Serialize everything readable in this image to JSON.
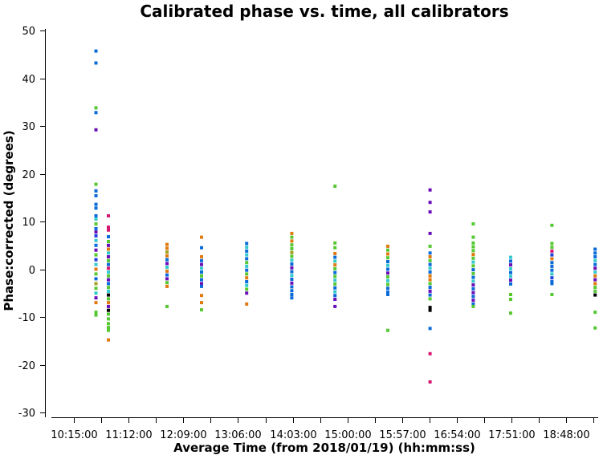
{
  "chart_data": {
    "type": "scatter",
    "title": "Calibrated phase vs. time, all calibrators",
    "xlabel": "Average Time (from 2018/01/19) (hh:mm:ss)",
    "ylabel": "Phase:corrected (degrees)",
    "ylim": [
      -30,
      50
    ],
    "yticks": [
      50,
      40,
      30,
      20,
      10,
      0,
      -10,
      -20,
      -30
    ],
    "xticks": [
      "10:15:00",
      "11:12:00",
      "12:09:00",
      "13:06:00",
      "14:03:00",
      "15:00:00",
      "15:57:00",
      "16:54:00",
      "17:51:00",
      "18:48:00"
    ],
    "grid": false,
    "colors": [
      "#0a6ad8",
      "#36c9cc",
      "#55c832",
      "#e07a10",
      "#6a0fb8",
      "#d41670",
      "#2040e0",
      "#000000",
      "#a0a020"
    ],
    "scans": [
      {
        "time": "10:38:00",
        "points": [
          {
            "y": 45.7,
            "c": 0
          },
          {
            "y": 43.2,
            "c": 0
          },
          {
            "y": 33.8,
            "c": 2
          },
          {
            "y": 32.8,
            "c": 0
          },
          {
            "y": 29.2,
            "c": 4
          },
          {
            "y": 17.8,
            "c": 2
          },
          {
            "y": 16.4,
            "c": 0
          },
          {
            "y": 15.4,
            "c": 0
          },
          {
            "y": 13.6,
            "c": 0
          },
          {
            "y": 12.8,
            "c": 0
          },
          {
            "y": 11.2,
            "c": 0
          },
          {
            "y": 10.5,
            "c": 1
          },
          {
            "y": 9.5,
            "c": 2
          },
          {
            "y": 8.5,
            "c": 0
          },
          {
            "y": 7.8,
            "c": 4
          },
          {
            "y": 7.0,
            "c": 6
          },
          {
            "y": 6.0,
            "c": 1
          },
          {
            "y": 5.0,
            "c": 0
          },
          {
            "y": 4.0,
            "c": 4
          },
          {
            "y": 3.0,
            "c": 2
          },
          {
            "y": 2.0,
            "c": 6
          },
          {
            "y": 1.0,
            "c": 1
          },
          {
            "y": 0.0,
            "c": 3
          },
          {
            "y": -1.0,
            "c": 2
          },
          {
            "y": -2.0,
            "c": 0
          },
          {
            "y": -3.0,
            "c": 8
          },
          {
            "y": -4.0,
            "c": 2
          },
          {
            "y": -5.0,
            "c": 1
          },
          {
            "y": -6.0,
            "c": 4
          },
          {
            "y": -7.0,
            "c": 3
          },
          {
            "y": -9.0,
            "c": 2
          },
          {
            "y": -9.6,
            "c": 2
          }
        ]
      },
      {
        "time": "10:51:00",
        "points": [
          {
            "y": 11.2,
            "c": 5
          },
          {
            "y": 8.8,
            "c": 5
          },
          {
            "y": 8.2,
            "c": 5
          },
          {
            "y": 6.8,
            "c": 0
          },
          {
            "y": 5.8,
            "c": 2
          },
          {
            "y": 5.0,
            "c": 4
          },
          {
            "y": 4.2,
            "c": 3
          },
          {
            "y": 3.4,
            "c": 1
          },
          {
            "y": 2.6,
            "c": 4
          },
          {
            "y": 1.8,
            "c": 2
          },
          {
            "y": 1.0,
            "c": 0
          },
          {
            "y": 0.2,
            "c": 5
          },
          {
            "y": -0.6,
            "c": 1
          },
          {
            "y": -1.4,
            "c": 2
          },
          {
            "y": -2.2,
            "c": 4
          },
          {
            "y": -3.0,
            "c": 0
          },
          {
            "y": -3.8,
            "c": 2
          },
          {
            "y": -4.6,
            "c": 1
          },
          {
            "y": -5.4,
            "c": 7
          },
          {
            "y": -6.2,
            "c": 2
          },
          {
            "y": -7.0,
            "c": 3
          },
          {
            "y": -7.8,
            "c": 4
          },
          {
            "y": -8.6,
            "c": 7
          },
          {
            "y": -9.4,
            "c": 2
          },
          {
            "y": -10.4,
            "c": 2
          },
          {
            "y": -11.4,
            "c": 2
          },
          {
            "y": -12.2,
            "c": 2
          },
          {
            "y": -12.8,
            "c": 2
          },
          {
            "y": -14.8,
            "c": 3
          }
        ]
      },
      {
        "time": "11:52:00",
        "points": [
          {
            "y": 5.2,
            "c": 3
          },
          {
            "y": 4.4,
            "c": 3
          },
          {
            "y": 3.6,
            "c": 8
          },
          {
            "y": 2.8,
            "c": 3
          },
          {
            "y": 2.0,
            "c": 0
          },
          {
            "y": 1.2,
            "c": 4
          },
          {
            "y": 0.4,
            "c": 1
          },
          {
            "y": -0.4,
            "c": 3
          },
          {
            "y": -1.2,
            "c": 0
          },
          {
            "y": -2.0,
            "c": 4
          },
          {
            "y": -2.8,
            "c": 2
          },
          {
            "y": -3.6,
            "c": 3
          },
          {
            "y": -7.8,
            "c": 2
          }
        ]
      },
      {
        "time": "12:28:00",
        "points": [
          {
            "y": 6.7,
            "c": 3
          },
          {
            "y": 4.5,
            "c": 0
          },
          {
            "y": 2.6,
            "c": 3
          },
          {
            "y": 1.8,
            "c": 0
          },
          {
            "y": 1.0,
            "c": 4
          },
          {
            "y": 0.2,
            "c": 1
          },
          {
            "y": -0.6,
            "c": 0
          },
          {
            "y": -1.4,
            "c": 2
          },
          {
            "y": -2.2,
            "c": 0
          },
          {
            "y": -3.0,
            "c": 4
          },
          {
            "y": -3.6,
            "c": 0
          },
          {
            "y": -5.5,
            "c": 3
          },
          {
            "y": -7.0,
            "c": 3
          },
          {
            "y": -8.5,
            "c": 2
          }
        ]
      },
      {
        "time": "13:15:00",
        "points": [
          {
            "y": 5.4,
            "c": 0
          },
          {
            "y": 4.6,
            "c": 1
          },
          {
            "y": 3.8,
            "c": 0
          },
          {
            "y": 3.0,
            "c": 1
          },
          {
            "y": 2.2,
            "c": 0
          },
          {
            "y": 1.4,
            "c": 2
          },
          {
            "y": 0.6,
            "c": 1
          },
          {
            "y": -0.2,
            "c": 0
          },
          {
            "y": -1.0,
            "c": 2
          },
          {
            "y": -1.8,
            "c": 3
          },
          {
            "y": -2.6,
            "c": 0
          },
          {
            "y": -3.4,
            "c": 1
          },
          {
            "y": -4.2,
            "c": 2
          },
          {
            "y": -5.0,
            "c": 4
          },
          {
            "y": -7.3,
            "c": 3
          }
        ]
      },
      {
        "time": "14:02:00",
        "points": [
          {
            "y": 7.5,
            "c": 3
          },
          {
            "y": 6.7,
            "c": 2
          },
          {
            "y": 5.9,
            "c": 3
          },
          {
            "y": 5.1,
            "c": 2
          },
          {
            "y": 4.3,
            "c": 2
          },
          {
            "y": 3.5,
            "c": 8
          },
          {
            "y": 2.7,
            "c": 2
          },
          {
            "y": 1.9,
            "c": 1
          },
          {
            "y": 1.1,
            "c": 0
          },
          {
            "y": 0.3,
            "c": 4
          },
          {
            "y": -0.5,
            "c": 0
          },
          {
            "y": -1.3,
            "c": 1
          },
          {
            "y": -2.1,
            "c": 0
          },
          {
            "y": -2.9,
            "c": 4
          },
          {
            "y": -3.7,
            "c": 0
          },
          {
            "y": -4.5,
            "c": 0
          },
          {
            "y": -5.3,
            "c": 0
          },
          {
            "y": -6.0,
            "c": 0
          }
        ]
      },
      {
        "time": "14:47:00",
        "points": [
          {
            "y": 17.4,
            "c": 2
          },
          {
            "y": 5.5,
            "c": 2
          },
          {
            "y": 4.5,
            "c": 2
          },
          {
            "y": 3.3,
            "c": 3
          },
          {
            "y": 2.5,
            "c": 0
          },
          {
            "y": 1.7,
            "c": 1
          },
          {
            "y": 0.9,
            "c": 3
          },
          {
            "y": 0.1,
            "c": 2
          },
          {
            "y": -0.7,
            "c": 0
          },
          {
            "y": -1.5,
            "c": 2
          },
          {
            "y": -2.3,
            "c": 1
          },
          {
            "y": -3.1,
            "c": 2
          },
          {
            "y": -3.9,
            "c": 0
          },
          {
            "y": -4.7,
            "c": 1
          },
          {
            "y": -5.5,
            "c": 0
          },
          {
            "y": -6.3,
            "c": 4
          },
          {
            "y": -7.8,
            "c": 4
          }
        ]
      },
      {
        "time": "15:42:00",
        "points": [
          {
            "y": 4.8,
            "c": 3
          },
          {
            "y": 4.0,
            "c": 2
          },
          {
            "y": 3.2,
            "c": 3
          },
          {
            "y": 2.4,
            "c": 2
          },
          {
            "y": 1.6,
            "c": 0
          },
          {
            "y": 0.8,
            "c": 1
          },
          {
            "y": 0.0,
            "c": 0
          },
          {
            "y": -0.8,
            "c": 4
          },
          {
            "y": -1.6,
            "c": 2
          },
          {
            "y": -2.4,
            "c": 1
          },
          {
            "y": -3.2,
            "c": 2
          },
          {
            "y": -4.0,
            "c": 0
          },
          {
            "y": -4.8,
            "c": 0
          },
          {
            "y": -5.3,
            "c": 0
          },
          {
            "y": -12.8,
            "c": 2
          }
        ]
      },
      {
        "time": "16:26:00",
        "points": [
          {
            "y": 16.6,
            "c": 4
          },
          {
            "y": 14.0,
            "c": 4
          },
          {
            "y": 12.0,
            "c": 4
          },
          {
            "y": 7.5,
            "c": 4
          },
          {
            "y": 4.8,
            "c": 2
          },
          {
            "y": 3.4,
            "c": 0
          },
          {
            "y": 2.6,
            "c": 3
          },
          {
            "y": 1.8,
            "c": 2
          },
          {
            "y": 1.0,
            "c": 0
          },
          {
            "y": 0.2,
            "c": 1
          },
          {
            "y": -0.6,
            "c": 0
          },
          {
            "y": -1.4,
            "c": 3
          },
          {
            "y": -2.2,
            "c": 3
          },
          {
            "y": -3.0,
            "c": 2
          },
          {
            "y": -3.8,
            "c": 0
          },
          {
            "y": -4.6,
            "c": 4
          },
          {
            "y": -5.4,
            "c": 0
          },
          {
            "y": -6.2,
            "c": 2
          },
          {
            "y": -8.0,
            "c": 7
          },
          {
            "y": -8.6,
            "c": 7
          },
          {
            "y": -12.4,
            "c": 0
          },
          {
            "y": -17.7,
            "c": 5
          },
          {
            "y": -23.6,
            "c": 5
          }
        ]
      },
      {
        "time": "17:11:00",
        "points": [
          {
            "y": 9.5,
            "c": 2
          },
          {
            "y": 6.7,
            "c": 2
          },
          {
            "y": 5.5,
            "c": 2
          },
          {
            "y": 4.7,
            "c": 2
          },
          {
            "y": 3.9,
            "c": 2
          },
          {
            "y": 3.1,
            "c": 3
          },
          {
            "y": 2.3,
            "c": 2
          },
          {
            "y": 1.5,
            "c": 1
          },
          {
            "y": 0.7,
            "c": 2
          },
          {
            "y": -0.1,
            "c": 0
          },
          {
            "y": -0.9,
            "c": 2
          },
          {
            "y": -1.7,
            "c": 0
          },
          {
            "y": -2.5,
            "c": 1
          },
          {
            "y": -3.3,
            "c": 4
          },
          {
            "y": -4.1,
            "c": 0
          },
          {
            "y": -4.9,
            "c": 4
          },
          {
            "y": -5.7,
            "c": 0
          },
          {
            "y": -6.5,
            "c": 4
          },
          {
            "y": -7.3,
            "c": 0
          },
          {
            "y": -7.8,
            "c": 2
          }
        ]
      },
      {
        "time": "17:50:00",
        "points": [
          {
            "y": 2.5,
            "c": 1
          },
          {
            "y": 1.7,
            "c": 0
          },
          {
            "y": 0.9,
            "c": 4
          },
          {
            "y": 0.1,
            "c": 1
          },
          {
            "y": -0.7,
            "c": 0
          },
          {
            "y": -1.5,
            "c": 1
          },
          {
            "y": -2.3,
            "c": 4
          },
          {
            "y": -3.1,
            "c": 0
          },
          {
            "y": -5.3,
            "c": 2
          },
          {
            "y": -6.3,
            "c": 2
          },
          {
            "y": -9.2,
            "c": 2
          }
        ]
      },
      {
        "time": "18:33:00",
        "points": [
          {
            "y": 9.2,
            "c": 2
          },
          {
            "y": 5.4,
            "c": 2
          },
          {
            "y": 4.6,
            "c": 2
          },
          {
            "y": 3.8,
            "c": 5
          },
          {
            "y": 3.0,
            "c": 6
          },
          {
            "y": 2.2,
            "c": 3
          },
          {
            "y": 1.4,
            "c": 0
          },
          {
            "y": 0.6,
            "c": 0
          },
          {
            "y": -0.2,
            "c": 0
          },
          {
            "y": -1.0,
            "c": 1
          },
          {
            "y": -1.8,
            "c": 6
          },
          {
            "y": -2.6,
            "c": 0
          },
          {
            "y": -3.0,
            "c": 0
          },
          {
            "y": -5.3,
            "c": 2
          }
        ]
      },
      {
        "time": "19:18:00",
        "points": [
          {
            "y": 4.2,
            "c": 0
          },
          {
            "y": 3.4,
            "c": 0
          },
          {
            "y": 2.6,
            "c": 0
          },
          {
            "y": 1.8,
            "c": 1
          },
          {
            "y": 1.0,
            "c": 0
          },
          {
            "y": 0.2,
            "c": 4
          },
          {
            "y": -0.6,
            "c": 1
          },
          {
            "y": -1.4,
            "c": 3
          },
          {
            "y": -2.2,
            "c": 4
          },
          {
            "y": -3.0,
            "c": 3
          },
          {
            "y": -3.8,
            "c": 2
          },
          {
            "y": -4.6,
            "c": 2
          },
          {
            "y": -5.4,
            "c": 7
          },
          {
            "y": -9.0,
            "c": 2
          },
          {
            "y": -12.3,
            "c": 2
          }
        ]
      },
      {
        "time": "20:03:00",
        "points": [
          {
            "y": 4.3,
            "c": 5
          },
          {
            "y": 3.5,
            "c": 0
          },
          {
            "y": 2.7,
            "c": 1
          },
          {
            "y": 1.9,
            "c": 0
          },
          {
            "y": 1.1,
            "c": 1
          },
          {
            "y": 0.3,
            "c": 3
          },
          {
            "y": -0.5,
            "c": 3
          },
          {
            "y": -1.3,
            "c": 0
          },
          {
            "y": -2.1,
            "c": 4
          },
          {
            "y": -2.9,
            "c": 4
          },
          {
            "y": -3.4,
            "c": 4
          }
        ]
      }
    ]
  }
}
